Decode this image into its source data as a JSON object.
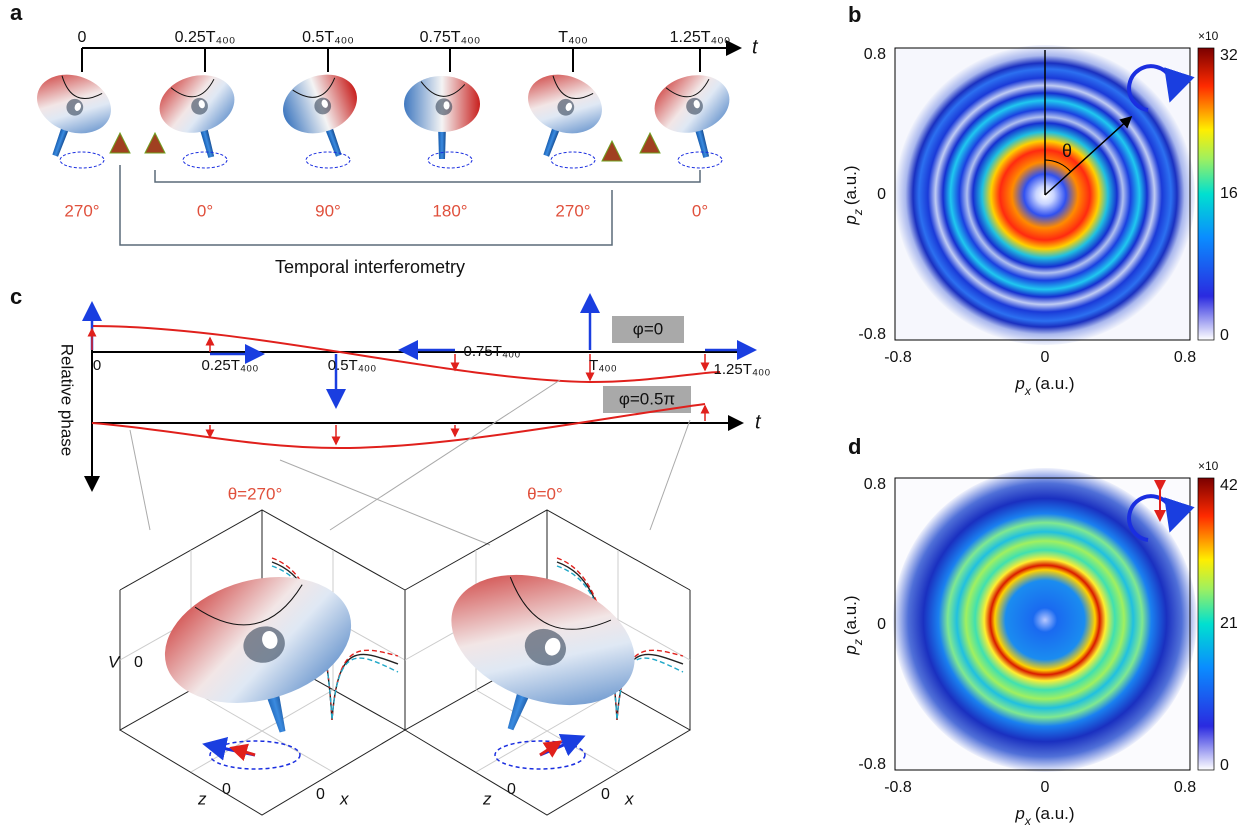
{
  "panels": {
    "a": {
      "label": "a",
      "axis_label": "t",
      "times": [
        "0",
        "0.25T₄₀₀",
        "0.5T₄₀₀",
        "0.75T₄₀₀",
        "T₄₀₀",
        "1.25T₄₀₀"
      ],
      "phases": [
        "270°",
        "0°",
        "90°",
        "180°",
        "270°",
        "0°"
      ],
      "caption": "Temporal interferometry"
    },
    "b": {
      "label": "b",
      "xlabel": {
        "var": "p",
        "sub": "x",
        "unit": "(a.u.)"
      },
      "ylabel": {
        "var": "p",
        "sub": "z",
        "unit": "(a.u.)"
      },
      "xticks": [
        "-0.8",
        "0",
        "0.8"
      ],
      "yticks": [
        "0.8",
        "0",
        "-0.8"
      ],
      "angle": "θ",
      "colorbar_scale": "×10",
      "colorbar_ticks": [
        "32",
        "16",
        "0"
      ]
    },
    "c": {
      "label": "c",
      "y_axis_label": "Relative phase",
      "axis_label": "t",
      "phase_boxes": [
        "φ=0",
        "φ=0.5π"
      ],
      "times": [
        "0",
        "0.25T₄₀₀",
        "0.5T₄₀₀",
        "0.75T₄₀₀",
        "T₄₀₀",
        "1.25T₄₀₀"
      ],
      "angles": [
        "θ=270°",
        "θ=0°"
      ],
      "box_labels": {
        "v": "V",
        "v0": "0",
        "z": "z",
        "z0": "0",
        "x0": "0",
        "x": "x"
      }
    },
    "d": {
      "label": "d",
      "xlabel": {
        "var": "p",
        "sub": "x",
        "unit": "(a.u.)"
      },
      "ylabel": {
        "var": "p",
        "sub": "z",
        "unit": "(a.u.)"
      },
      "xticks": [
        "-0.8",
        "0",
        "0.8"
      ],
      "yticks": [
        "0.8",
        "0",
        "-0.8"
      ],
      "colorbar_scale": "×10",
      "colorbar_ticks": [
        "42",
        "21",
        "0"
      ]
    }
  }
}
